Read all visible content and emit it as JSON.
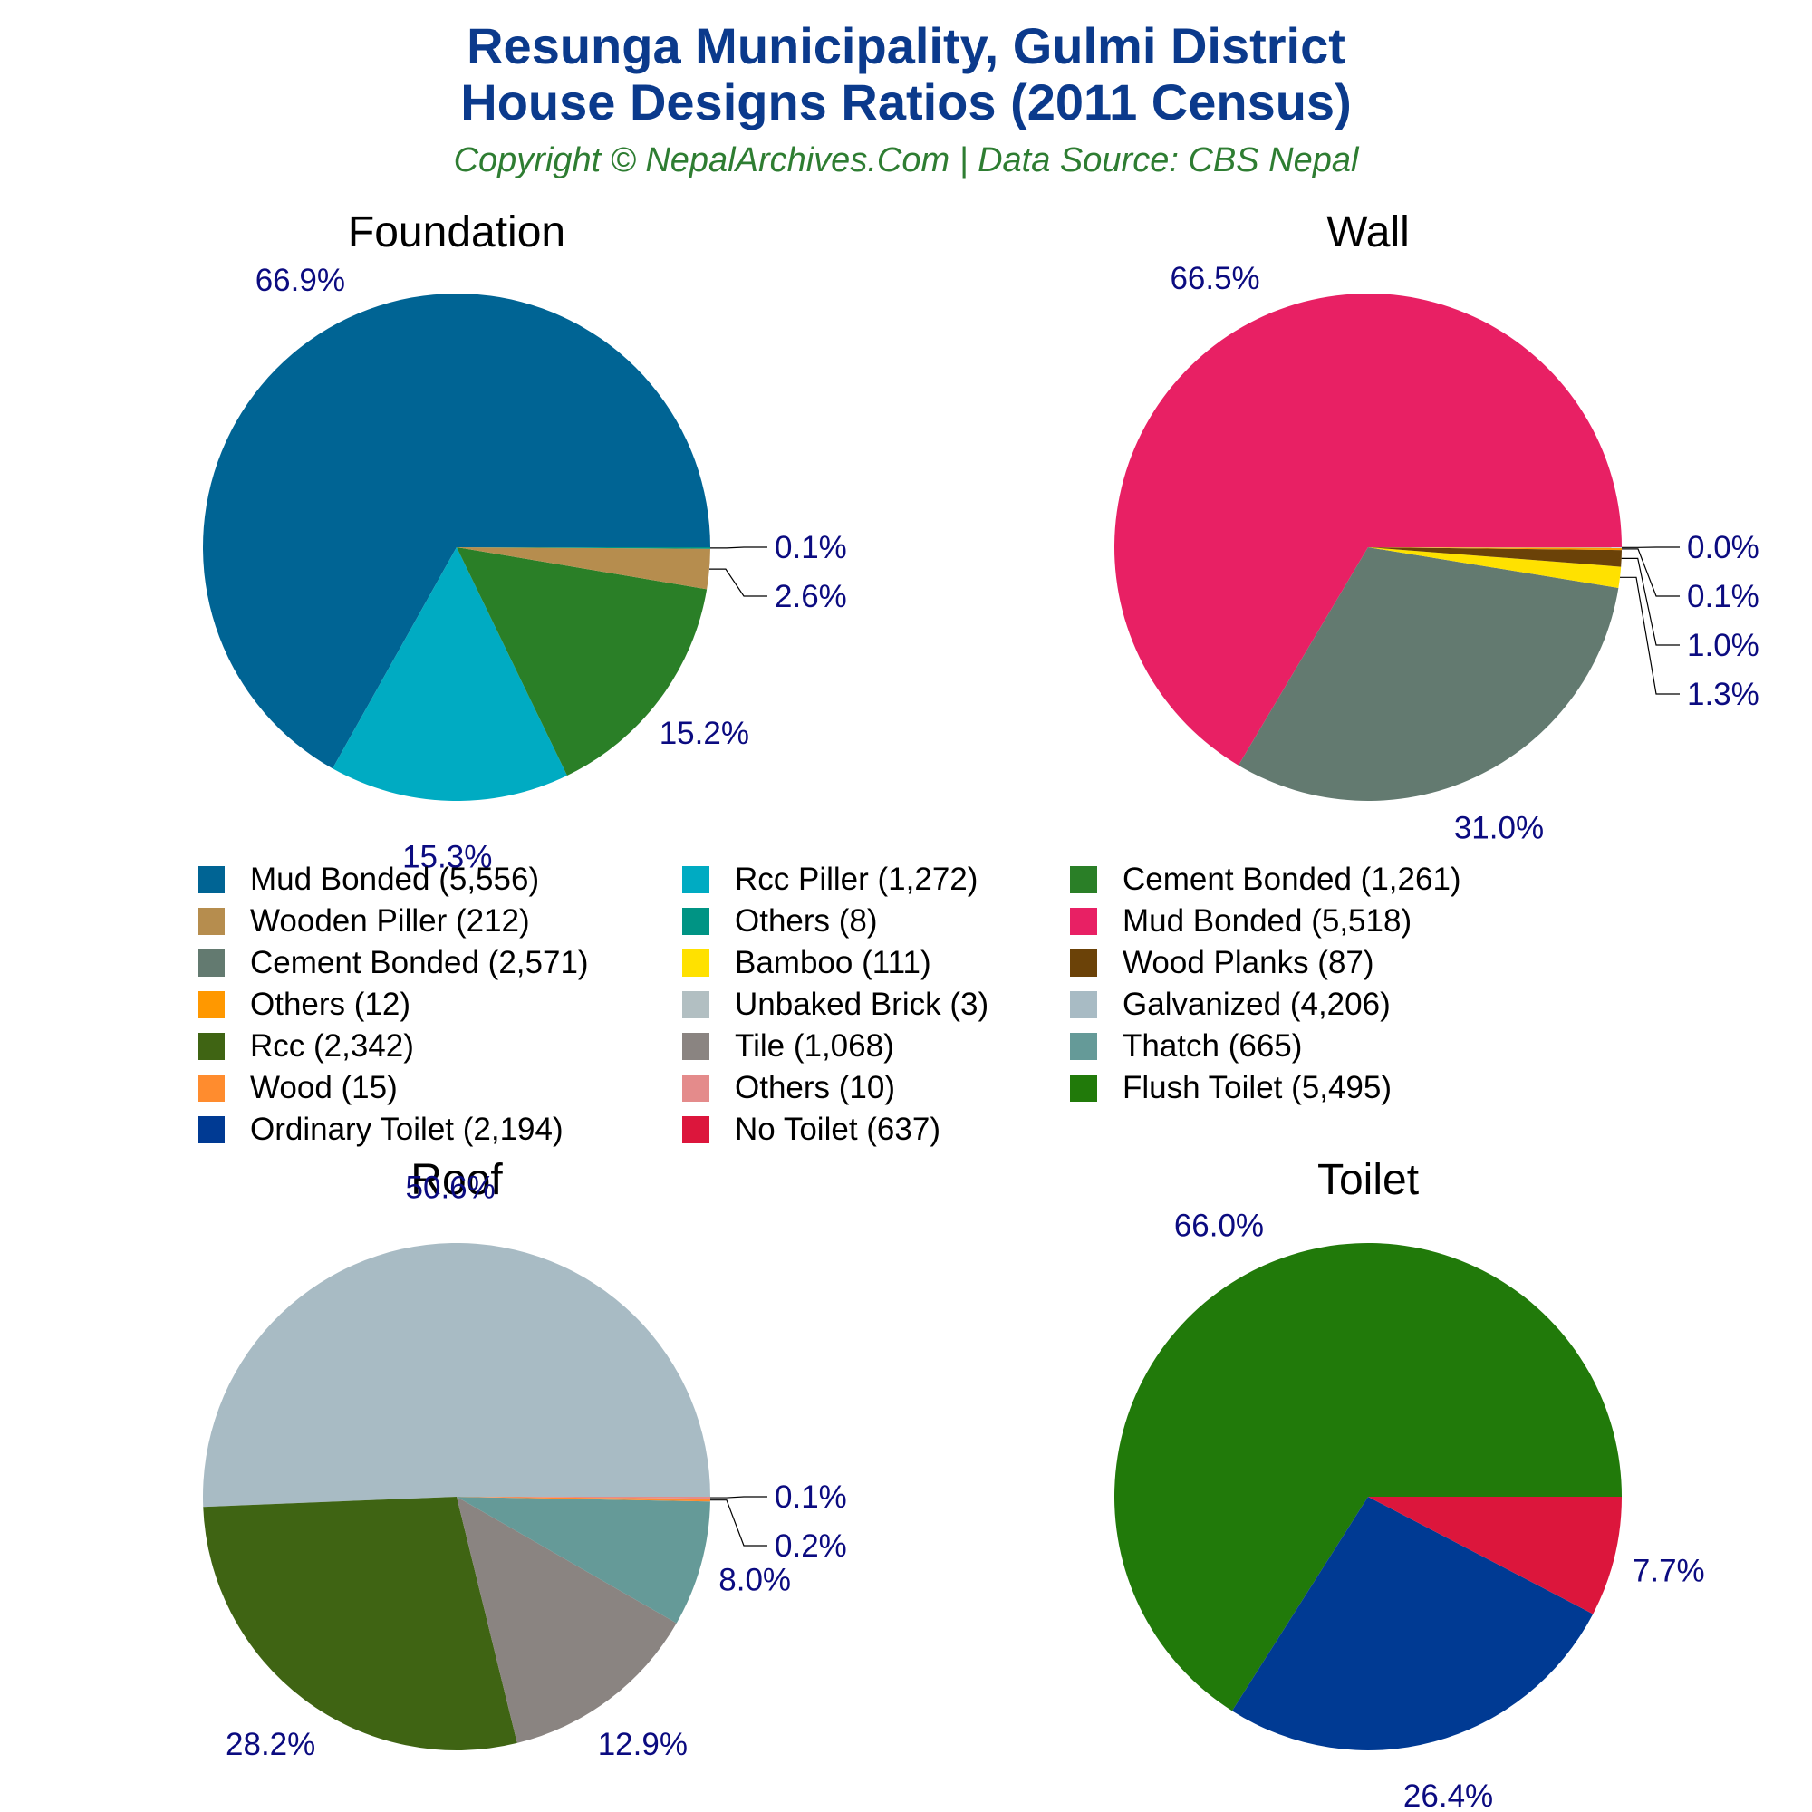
{
  "header": {
    "title_line1": "Resunga Municipality, Gulmi District",
    "title_line2": "House Designs Ratios (2011 Census)",
    "subtitle": "Copyright © NepalArchives.Com | Data Source: CBS Nepal"
  },
  "colors": {
    "title": "#0b3a8c",
    "subtitle": "#2e7d32",
    "percent_label": "#0b0b80",
    "leader_line": "#000000"
  },
  "legend": [
    {
      "label": "Mud Bonded (5,556)",
      "color": "#006494"
    },
    {
      "label": "Rcc Piller (1,272)",
      "color": "#00abc2"
    },
    {
      "label": "Cement Bonded (1,261)",
      "color": "#2a7f27"
    },
    {
      "label": "Wooden Piller (212)",
      "color": "#b68d4e"
    },
    {
      "label": "Others (8)",
      "color": "#009484"
    },
    {
      "label": "Mud Bonded (5,518)",
      "color": "#e82064"
    },
    {
      "label": "Cement Bonded (2,571)",
      "color": "#637a70"
    },
    {
      "label": "Bamboo (111)",
      "color": "#ffe100"
    },
    {
      "label": "Wood Planks (87)",
      "color": "#6b4208"
    },
    {
      "label": "Others (12)",
      "color": "#ff9800"
    },
    {
      "label": "Unbaked Brick (3)",
      "color": "#b2bfc2"
    },
    {
      "label": "Galvanized (4,206)",
      "color": "#a8bbc4"
    },
    {
      "label": "Rcc (2,342)",
      "color": "#3f6413"
    },
    {
      "label": "Tile (1,068)",
      "color": "#8a8481"
    },
    {
      "label": "Thatch (665)",
      "color": "#659a98"
    },
    {
      "label": "Wood (15)",
      "color": "#ff8c2e"
    },
    {
      "label": "Others (10)",
      "color": "#e48b8b"
    },
    {
      "label": "Flush Toilet (5,495)",
      "color": "#217a0a"
    },
    {
      "label": "Ordinary Toilet (2,194)",
      "color": "#003a93"
    },
    {
      "label": "No Toilet (637)",
      "color": "#dc163c"
    }
  ],
  "chart_data": [
    {
      "type": "pie",
      "title": "Foundation",
      "slices": [
        {
          "name": "Mud Bonded",
          "value": 5556,
          "label": "66.9%",
          "color": "#006494"
        },
        {
          "name": "Rcc Piller",
          "value": 1272,
          "label": "15.3%",
          "color": "#00abc2"
        },
        {
          "name": "Cement Bonded",
          "value": 1261,
          "label": "15.2%",
          "color": "#2a7f27"
        },
        {
          "name": "Wooden Piller",
          "value": 212,
          "label": "2.6%",
          "color": "#b68d4e"
        },
        {
          "name": "Others",
          "value": 8,
          "label": "0.1%",
          "color": "#009484"
        }
      ]
    },
    {
      "type": "pie",
      "title": "Wall",
      "slices": [
        {
          "name": "Mud Bonded",
          "value": 5518,
          "label": "66.5%",
          "color": "#e82064"
        },
        {
          "name": "Cement Bonded",
          "value": 2571,
          "label": "31.0%",
          "color": "#637a70"
        },
        {
          "name": "Bamboo",
          "value": 111,
          "label": "1.3%",
          "color": "#ffe100"
        },
        {
          "name": "Wood Planks",
          "value": 87,
          "label": "1.0%",
          "color": "#6b4208"
        },
        {
          "name": "Others",
          "value": 12,
          "label": "0.1%",
          "color": "#ff9800"
        },
        {
          "name": "Unbaked Brick",
          "value": 3,
          "label": "0.0%",
          "color": "#b2bfc2"
        }
      ]
    },
    {
      "type": "pie",
      "title": "Roof",
      "slices": [
        {
          "name": "Galvanized",
          "value": 4206,
          "label": "50.6%",
          "color": "#a8bbc4"
        },
        {
          "name": "Rcc",
          "value": 2342,
          "label": "28.2%",
          "color": "#3f6413"
        },
        {
          "name": "Tile",
          "value": 1068,
          "label": "12.9%",
          "color": "#8a8481"
        },
        {
          "name": "Thatch",
          "value": 665,
          "label": "8.0%",
          "color": "#659a98"
        },
        {
          "name": "Wood",
          "value": 15,
          "label": "0.2%",
          "color": "#ff8c2e"
        },
        {
          "name": "Others",
          "value": 10,
          "label": "0.1%",
          "color": "#e48b8b"
        }
      ]
    },
    {
      "type": "pie",
      "title": "Toilet",
      "slices": [
        {
          "name": "Flush Toilet",
          "value": 5495,
          "label": "66.0%",
          "color": "#217a0a"
        },
        {
          "name": "Ordinary Toilet",
          "value": 2194,
          "label": "26.4%",
          "color": "#003a93"
        },
        {
          "name": "No Toilet",
          "value": 637,
          "label": "7.7%",
          "color": "#dc163c"
        }
      ]
    }
  ]
}
